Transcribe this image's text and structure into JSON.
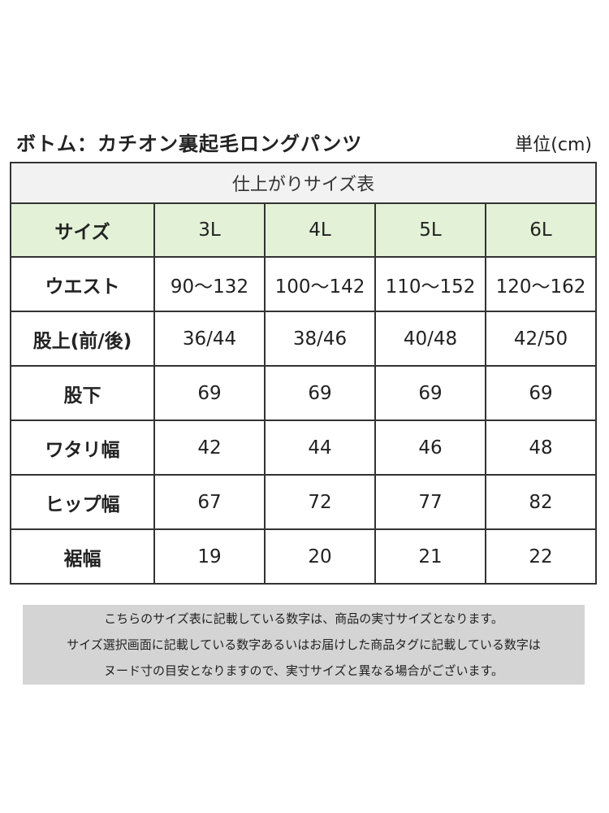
{
  "header": {
    "title": "ボトム：カチオン裏起毛ロングパンツ",
    "unit": "単位(cm)"
  },
  "table": {
    "caption": "仕上がりサイズ表",
    "header_label": "サイズ",
    "sizes": [
      "3L",
      "4L",
      "5L",
      "6L"
    ],
    "rows": [
      {
        "label": "ウエスト",
        "values": [
          "90〜132",
          "100〜142",
          "110〜152",
          "120〜162"
        ]
      },
      {
        "label": "股上(前/後)",
        "values": [
          "36/44",
          "38/46",
          "40/48",
          "42/50"
        ]
      },
      {
        "label": "股下",
        "values": [
          "69",
          "69",
          "69",
          "69"
        ]
      },
      {
        "label": "ワタリ幅",
        "values": [
          "42",
          "44",
          "46",
          "48"
        ]
      },
      {
        "label": "ヒップ幅",
        "values": [
          "67",
          "72",
          "77",
          "82"
        ]
      },
      {
        "label": "裾幅",
        "values": [
          "19",
          "20",
          "21",
          "22"
        ]
      }
    ]
  },
  "note": {
    "lines": [
      "こちらのサイズ表に記載している数字は、商品の実寸サイズとなります。",
      "サイズ選択画面に記載している数字あるいはお届けした商品タグに記載している数字は",
      "ヌード寸の目安となりますので、実寸サイズと異なる場合がございます。"
    ]
  }
}
